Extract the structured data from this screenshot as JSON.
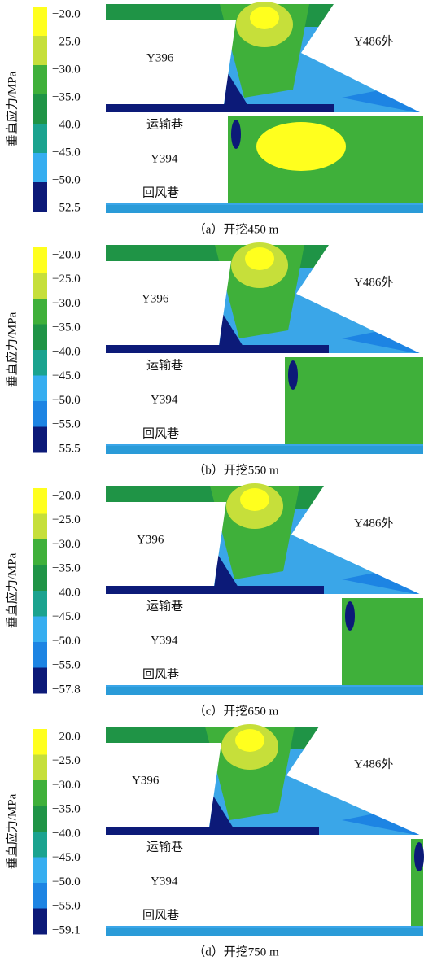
{
  "panels": [
    {
      "colorbar_title": "垂直应力/MPa",
      "colorbar_labels": [
        "−20.0",
        "−25.0",
        "−30.0",
        "−35.0",
        "−40.0",
        "−45.0",
        "−50.0",
        "−52.5"
      ],
      "labels": {
        "upper_left": "Y396",
        "upper_right": "Y486外",
        "roadway": "运输巷",
        "lower_left": "Y394",
        "return": "回风巷"
      },
      "caption": "（a）开挖450 m"
    },
    {
      "colorbar_title": "垂直应力/MPa",
      "colorbar_labels": [
        "−20.0",
        "−25.0",
        "−30.0",
        "−35.0",
        "−40.0",
        "−45.0",
        "−50.0",
        "−55.0",
        "−55.5"
      ],
      "labels": {
        "upper_left": "Y396",
        "upper_right": "Y486外",
        "roadway": "运输巷",
        "lower_left": "Y394",
        "return": "回风巷"
      },
      "caption": "（b）开挖550 m"
    },
    {
      "colorbar_title": "垂直应力/MPa",
      "colorbar_labels": [
        "−20.0",
        "−25.0",
        "−30.0",
        "−35.0",
        "−40.0",
        "−45.0",
        "−50.0",
        "−55.0",
        "−57.8"
      ],
      "labels": {
        "upper_left": "Y396",
        "upper_right": "Y486外",
        "roadway": "运输巷",
        "lower_left": "Y394",
        "return": "回风巷"
      },
      "caption": "（c）开挖650 m"
    },
    {
      "colorbar_title": "垂直应力/MPa",
      "colorbar_labels": [
        "−20.0",
        "−25.0",
        "−30.0",
        "−35.0",
        "−40.0",
        "−45.0",
        "−50.0",
        "−55.0",
        "−59.1"
      ],
      "labels": {
        "upper_left": "Y396",
        "upper_right": "Y486外",
        "roadway": "运输巷",
        "lower_left": "Y394",
        "return": "回风巷"
      },
      "caption": "（d）开挖750 m"
    }
  ]
}
